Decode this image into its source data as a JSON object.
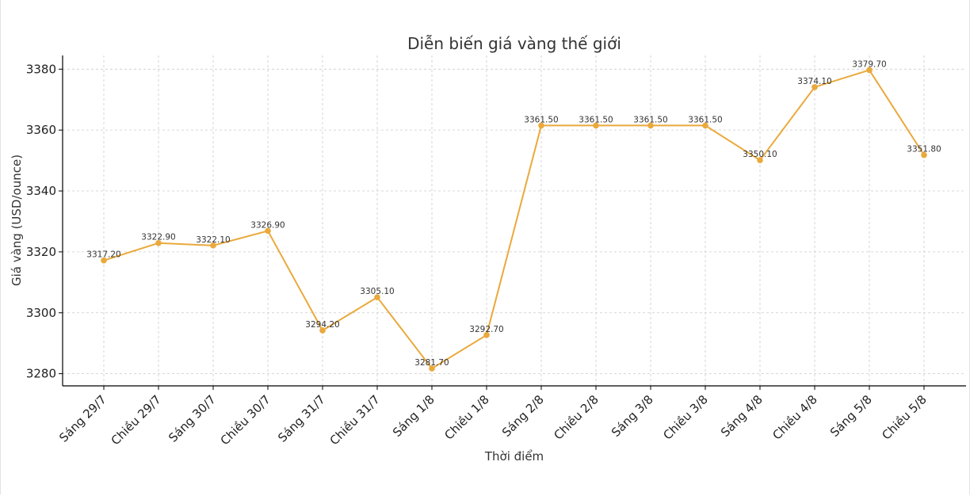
{
  "chart_data": {
    "type": "line",
    "title": "Diễn biến giá vàng thế giới",
    "xlabel": "Thời điểm",
    "ylabel": "Giá vàng (USD/ounce)",
    "categories": [
      "Sáng 29/7",
      "Chiều 29/7",
      "Sáng 30/7",
      "Chiều 30/7",
      "Sáng 31/7",
      "Chiều 31/7",
      "Sáng 1/8",
      "Chiều 1/8",
      "Sáng 2/8",
      "Chiều 2/8",
      "Sáng 3/8",
      "Chiều 3/8",
      "Sáng 4/8",
      "Chiều 4/8",
      "Sáng 5/8",
      "Chiều 5/8"
    ],
    "series": [
      {
        "values": [
          3317.2,
          3322.9,
          3322.1,
          3326.9,
          3294.2,
          3305.1,
          3281.7,
          3292.7,
          3361.5,
          3361.5,
          3361.5,
          3361.5,
          3350.1,
          3374.1,
          3379.7,
          3351.8
        ],
        "labels": [
          "3317.20",
          "3322.90",
          "3322.10",
          "3326.90",
          "3294.20",
          "3305.10",
          "3281.70",
          "3292.70",
          "3361.50",
          "3361.50",
          "3361.50",
          "3361.50",
          "3350.10",
          "3374.10",
          "3379.70",
          "3351.80"
        ],
        "color": "#eaa93b"
      }
    ],
    "yticks": [
      3280,
      3300,
      3320,
      3340,
      3360,
      3380
    ],
    "ylim": [
      3276,
      3384.5
    ],
    "grid": true,
    "legend": "none"
  }
}
